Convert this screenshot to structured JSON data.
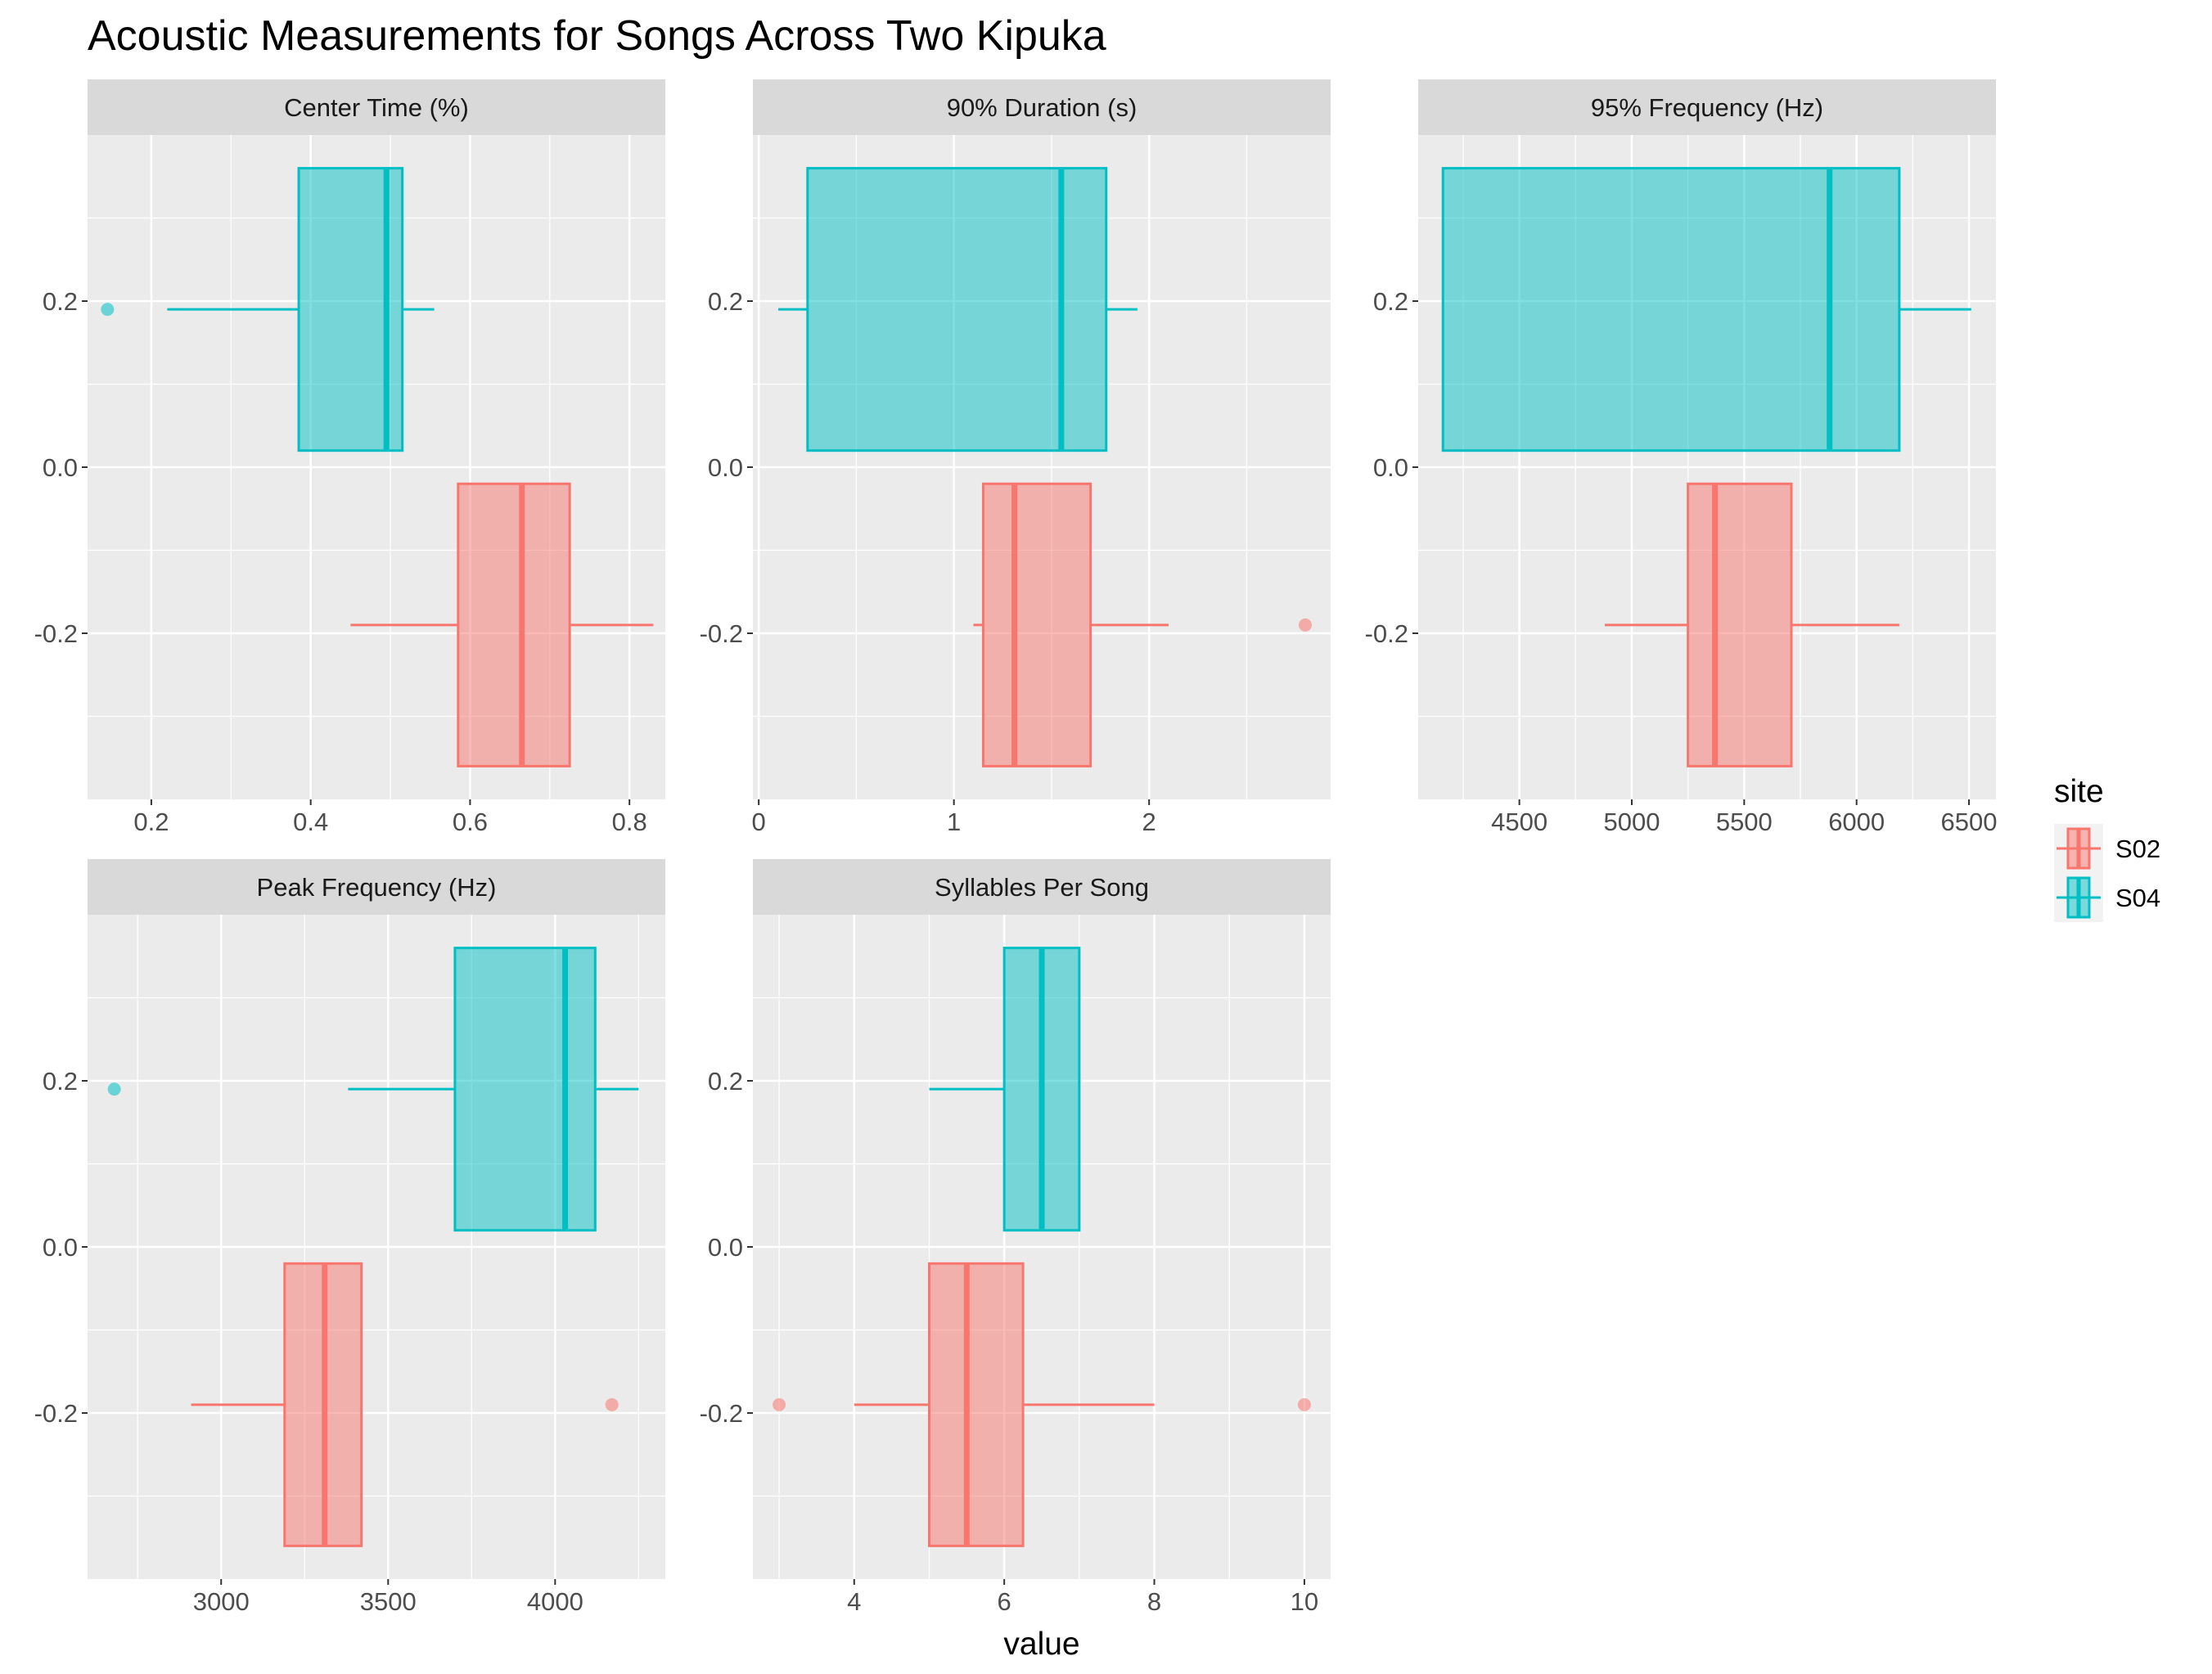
{
  "chart_data": {
    "type": "boxplot",
    "title": "Acoustic Measurements for Songs Across Two Kipuka",
    "xlabel": "value",
    "ylabel": "",
    "y_ticks": [
      -0.2,
      0.0,
      0.2
    ],
    "y_tick_labels": [
      "-0.2",
      "0.0",
      "0.2"
    ],
    "ylim": [
      -0.4,
      0.4
    ],
    "legend": {
      "title": "site",
      "position": "right",
      "entries": [
        {
          "name": "S02",
          "fill": "#F8766D"
        },
        {
          "name": "S04",
          "fill": "#00BFC4"
        }
      ]
    },
    "panels": [
      {
        "name": "Center Time (%)",
        "xlim": [
          0.12,
          0.845
        ],
        "x_ticks": [
          0.2,
          0.4,
          0.6,
          0.8
        ],
        "x_tick_labels": [
          "0.2",
          "0.4",
          "0.6",
          "0.8"
        ],
        "series": [
          {
            "site": "S04",
            "y": 0.19,
            "whisker_low": 0.22,
            "q1": 0.385,
            "median": 0.495,
            "q3": 0.515,
            "whisker_high": 0.555,
            "outliers": [
              0.145
            ]
          },
          {
            "site": "S02",
            "y": -0.19,
            "whisker_low": 0.45,
            "q1": 0.585,
            "median": 0.665,
            "q3": 0.725,
            "whisker_high": 0.83,
            "outliers": []
          }
        ]
      },
      {
        "name": "90% Duration (s)",
        "xlim": [
          -0.03,
          2.93
        ],
        "x_ticks": [
          0,
          1,
          2
        ],
        "x_tick_labels": [
          "0",
          "1",
          "2"
        ],
        "series": [
          {
            "site": "S04",
            "y": 0.19,
            "whisker_low": 0.1,
            "q1": 0.25,
            "median": 1.55,
            "q3": 1.78,
            "whisker_high": 1.94,
            "outliers": []
          },
          {
            "site": "S02",
            "y": -0.19,
            "whisker_low": 1.1,
            "q1": 1.15,
            "median": 1.31,
            "q3": 1.7,
            "whisker_high": 2.1,
            "outliers": [
              2.8
            ]
          }
        ]
      },
      {
        "name": "95% Frequency (Hz)",
        "xlim": [
          4050,
          6620
        ],
        "x_ticks": [
          4500,
          5000,
          5500,
          6000,
          6500
        ],
        "x_tick_labels": [
          "4500",
          "5000",
          "5500",
          "6000",
          "6500"
        ],
        "series": [
          {
            "site": "S04",
            "y": 0.19,
            "whisker_low": 4160,
            "q1": 4160,
            "median": 5880,
            "q3": 6190,
            "whisker_high": 6510,
            "outliers": []
          },
          {
            "site": "S02",
            "y": -0.19,
            "whisker_low": 4880,
            "q1": 5250,
            "median": 5370,
            "q3": 5710,
            "whisker_high": 6190,
            "outliers": []
          }
        ]
      },
      {
        "name": "Peak Frequency (Hz)",
        "xlim": [
          2600,
          4330
        ],
        "x_ticks": [
          3000,
          3500,
          4000
        ],
        "x_tick_labels": [
          "3000",
          "3500",
          "4000"
        ],
        "series": [
          {
            "site": "S04",
            "y": 0.19,
            "whisker_low": 3380,
            "q1": 3700,
            "median": 4030,
            "q3": 4120,
            "whisker_high": 4250,
            "outliers": [
              2680
            ]
          },
          {
            "site": "S02",
            "y": -0.19,
            "whisker_low": 2910,
            "q1": 3190,
            "median": 3310,
            "q3": 3420,
            "whisker_high": 3420,
            "outliers": [
              4170
            ]
          }
        ]
      },
      {
        "name": "Syllables Per Song",
        "xlim": [
          2.65,
          10.35
        ],
        "x_ticks": [
          4,
          6,
          8,
          10
        ],
        "x_tick_labels": [
          "4",
          "6",
          "8",
          "10"
        ],
        "series": [
          {
            "site": "S04",
            "y": 0.19,
            "whisker_low": 5,
            "q1": 6,
            "median": 6.5,
            "q3": 7,
            "whisker_high": 7,
            "outliers": []
          },
          {
            "site": "S02",
            "y": -0.19,
            "whisker_low": 4,
            "q1": 5,
            "median": 5.5,
            "q3": 6.25,
            "whisker_high": 8,
            "outliers": [
              3,
              10
            ]
          }
        ]
      }
    ]
  }
}
